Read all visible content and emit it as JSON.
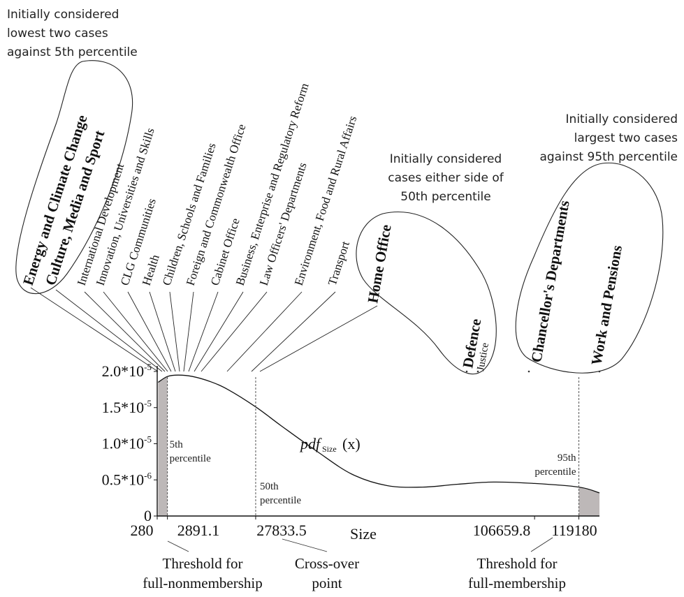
{
  "chart_data": {
    "type": "line",
    "curve_label_main": "pdf",
    "curve_label_sub": "Size",
    "curve_label_arg": "(x)",
    "xlabel": "Size",
    "x_ticks": [
      "280",
      "2891.1",
      "27833.5",
      "106659.8",
      "119180"
    ],
    "y_ticks": [
      {
        "base": "0",
        "sup": ""
      },
      {
        "base": "0.5*10",
        "sup": "-6"
      },
      {
        "base": "1.0*10",
        "sup": "-5"
      },
      {
        "base": "1.5*10",
        "sup": "-5"
      },
      {
        "base": "2.0*10",
        "sup": "-5"
      }
    ],
    "thresholds": [
      {
        "x": 2891.1,
        "label_line1": "5th",
        "label_line2": "percentile"
      },
      {
        "x": 27833.5,
        "label_line1": "50th",
        "label_line2": "percentile"
      },
      {
        "x": 119180,
        "label_line1": "95th",
        "label_line2": "percentile"
      }
    ],
    "series": [
      {
        "x": [
          280,
          2891.1,
          6000,
          10000,
          15000,
          20000,
          27833.5,
          35000,
          45000,
          55000,
          65000,
          75000,
          85000,
          95000,
          106659.8,
          119180,
          125000
        ],
        "y": [
          1.85e-05,
          1.93e-05,
          1.95e-05,
          1.93e-05,
          1.86e-05,
          1.75e-05,
          1.51e-05,
          1.25e-05,
          9e-06,
          5.8e-06,
          4.2e-06,
          4e-06,
          4.4e-06,
          4.7e-06,
          4.5e-06,
          4e-06,
          3.2e-06
        ]
      }
    ]
  },
  "annotations": {
    "low_note": [
      "Initially considered",
      "lowest two cases",
      "against 5th percentile"
    ],
    "mid_note": [
      "Initially considered",
      "cases either side of",
      "50th percentile"
    ],
    "high_note": [
      "Initially considered",
      "largest two cases",
      "against 95th percentile"
    ],
    "low_group_bold": [
      "Energy and Climate Change",
      "Culture, Media and Sport"
    ],
    "departments": [
      "International Development",
      "Innovation, Universities and Skills",
      "CLG Communities",
      "Health",
      "Children, Schools and Families",
      "Foreign and Commonwealth Office",
      "Cabinet Office",
      "Business, Enterprise and Regulatory Reform",
      "Law Officers' Departments",
      "Environment, Food and Rural Affairs",
      "Transport"
    ],
    "mid_group_bold": [
      "Home Office",
      "Defence"
    ],
    "mid_group_plain": "Justice",
    "high_group_bold": [
      "Chancellor's Departments",
      "Work and Pensions"
    ],
    "bottom_labels": [
      [
        "Threshold for",
        "full-nonmembership"
      ],
      [
        "Cross-over",
        "point"
      ],
      [
        "Threshold for",
        "full-membership"
      ]
    ]
  }
}
